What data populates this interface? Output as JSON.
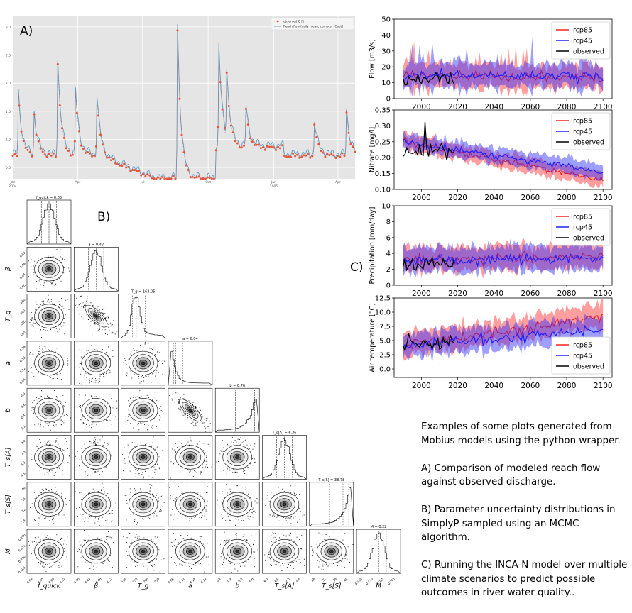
{
  "labels": {
    "a": "A)",
    "b": "B)",
    "c": "C)"
  },
  "caption": {
    "intro": "Examples of some plots generated from Mobius models using the python wrapper.",
    "a": "A) Comparison of modeled reach flow against observed discharge.",
    "b": "B) Parameter uncertainty distributions in SimplyP sampled using an MCMC algorithm.",
    "c": "C) Running the INCA-N model over multiple climate scenarios to predict possible outcomes in river water quality.."
  },
  "colors": {
    "observed_dot": "#e8543a",
    "modeled_line": "#5b9bc4",
    "rcp85": "#ff2020",
    "rcp45": "#2020ff",
    "observed": "#000000",
    "ggplot_bg": "#e5e5e5"
  },
  "chart_data": [
    {
      "id": "A",
      "type": "line",
      "legend": [
        "observed Q []",
        "Reach flow (daily mean, cumecs) [Caut]"
      ],
      "legend_position": "top-right",
      "xticks": [
        "Jan\n2004",
        "Apr",
        "Jul",
        "Oct",
        "Jan\n2005",
        "Apr"
      ],
      "yticks": [
        "0.5",
        "1.0",
        "1.5",
        "2.0",
        "2.5",
        "3.0"
      ],
      "ylim": [
        0.3,
        3.2
      ],
      "grid": true,
      "peaks": [
        {
          "day": 8,
          "q": 1.85
        },
        {
          "day": 30,
          "q": 1.5
        },
        {
          "day": 63,
          "q": 2.45
        },
        {
          "day": 88,
          "q": 1.9
        },
        {
          "day": 118,
          "q": 1.8
        },
        {
          "day": 231,
          "q": 3.05
        },
        {
          "day": 289,
          "q": 2.7
        },
        {
          "day": 300,
          "q": 2.1
        },
        {
          "day": 327,
          "q": 1.6
        },
        {
          "day": 423,
          "q": 1.35
        },
        {
          "day": 468,
          "q": 1.55
        }
      ]
    },
    {
      "id": "B",
      "type": "scatter",
      "params": [
        "f_quick",
        "β",
        "T_g",
        "a",
        "b",
        "T_s[A]",
        "T_s[S]",
        "M"
      ],
      "titles": [
        "f_quick = 0.05",
        "β = 0.47",
        "T_g = 163.05",
        "a = 0.04",
        "b = 0.76",
        "T_s[A] = 6.36",
        "T_s[S] = 38.78",
        "M = 0.22"
      ],
      "ticks": [
        [
          "0.04",
          "0.05",
          "0.06",
          "0.07"
        ],
        [
          "0.40",
          "0.44",
          "0.48",
          "0.52"
        ],
        [
          "100",
          "150",
          "200",
          "250"
        ],
        [
          "0.06",
          "0.12",
          "0.18",
          "0.24"
        ],
        [
          "0.2",
          "0.4",
          "0.6",
          "0.8"
        ],
        [
          "4.5",
          "6.0",
          "7.5",
          "9.0"
        ],
        [
          "28",
          "32",
          "36",
          "40"
        ],
        [
          "0.195",
          "0.210",
          "0.225",
          "0.240"
        ]
      ]
    },
    {
      "id": "C1",
      "type": "line",
      "ylabel": "Flow [m3/s]",
      "ylim": [
        0,
        50
      ],
      "yticks": [
        0,
        10,
        20,
        30,
        40,
        50
      ],
      "xlim": [
        1985,
        2105
      ],
      "xticks": [
        2000,
        2020,
        2040,
        2060,
        2080,
        2100
      ],
      "legend": [
        "rcp85",
        "rcp45",
        "observed"
      ],
      "legend_position": "top-right",
      "series": [
        {
          "name": "rcp85",
          "start": 15,
          "end": 13,
          "spread": 9
        },
        {
          "name": "rcp45",
          "start": 15,
          "end": 14,
          "spread": 9
        },
        {
          "name": "observed",
          "from": 1990,
          "to": 2018,
          "level": 13
        }
      ]
    },
    {
      "id": "C2",
      "type": "line",
      "ylabel": "Nitrate [mg/l]",
      "ylim": [
        0.1,
        0.35
      ],
      "yticks": [
        0.1,
        0.15,
        0.2,
        0.25,
        0.3,
        0.35
      ],
      "xlim": [
        1985,
        2105
      ],
      "xticks": [
        2000,
        2020,
        2040,
        2060,
        2080,
        2100
      ],
      "legend": [
        "rcp85",
        "rcp45",
        "observed"
      ],
      "legend_position": "top-right",
      "series": [
        {
          "name": "rcp85",
          "start": 0.25,
          "end": 0.13,
          "spread": 0.03
        },
        {
          "name": "rcp45",
          "start": 0.25,
          "end": 0.155,
          "spread": 0.03
        },
        {
          "name": "observed",
          "from": 1990,
          "to": 2018,
          "level": 0.22
        }
      ]
    },
    {
      "id": "C3",
      "type": "line",
      "ylabel": "Precipitation [mm/day]",
      "ylim": [
        0,
        10
      ],
      "yticks": [
        0,
        2,
        4,
        6,
        8,
        10
      ],
      "xlim": [
        1985,
        2105
      ],
      "xticks": [
        2000,
        2020,
        2040,
        2060,
        2080,
        2100
      ],
      "legend": [
        "rcp85",
        "rcp45",
        "observed"
      ],
      "legend_position": "top-right",
      "series": [
        {
          "name": "rcp85",
          "start": 3.2,
          "end": 3.6,
          "spread": 1.9
        },
        {
          "name": "rcp45",
          "start": 3.2,
          "end": 3.4,
          "spread": 1.9
        },
        {
          "name": "observed",
          "from": 1990,
          "to": 2018,
          "level": 2.7
        }
      ]
    },
    {
      "id": "C4",
      "type": "line",
      "ylabel": "Air temperature [°C]",
      "ylim": [
        -1.5,
        12.5
      ],
      "yticks": [
        0.0,
        2.5,
        5.0,
        7.5,
        10.0,
        12.5
      ],
      "xlim": [
        1985,
        2105
      ],
      "xticks": [
        2000,
        2020,
        2040,
        2060,
        2080,
        2100
      ],
      "legend": [
        "rcp85",
        "rcp45",
        "observed"
      ],
      "legend_position": "bottom-right",
      "series": [
        {
          "name": "rcp85",
          "start": 4.0,
          "end": 9.2,
          "spread": 2.6
        },
        {
          "name": "rcp45",
          "start": 4.0,
          "end": 6.8,
          "spread": 2.6
        },
        {
          "name": "observed",
          "from": 1990,
          "to": 2018,
          "level": 4.6
        }
      ]
    }
  ]
}
